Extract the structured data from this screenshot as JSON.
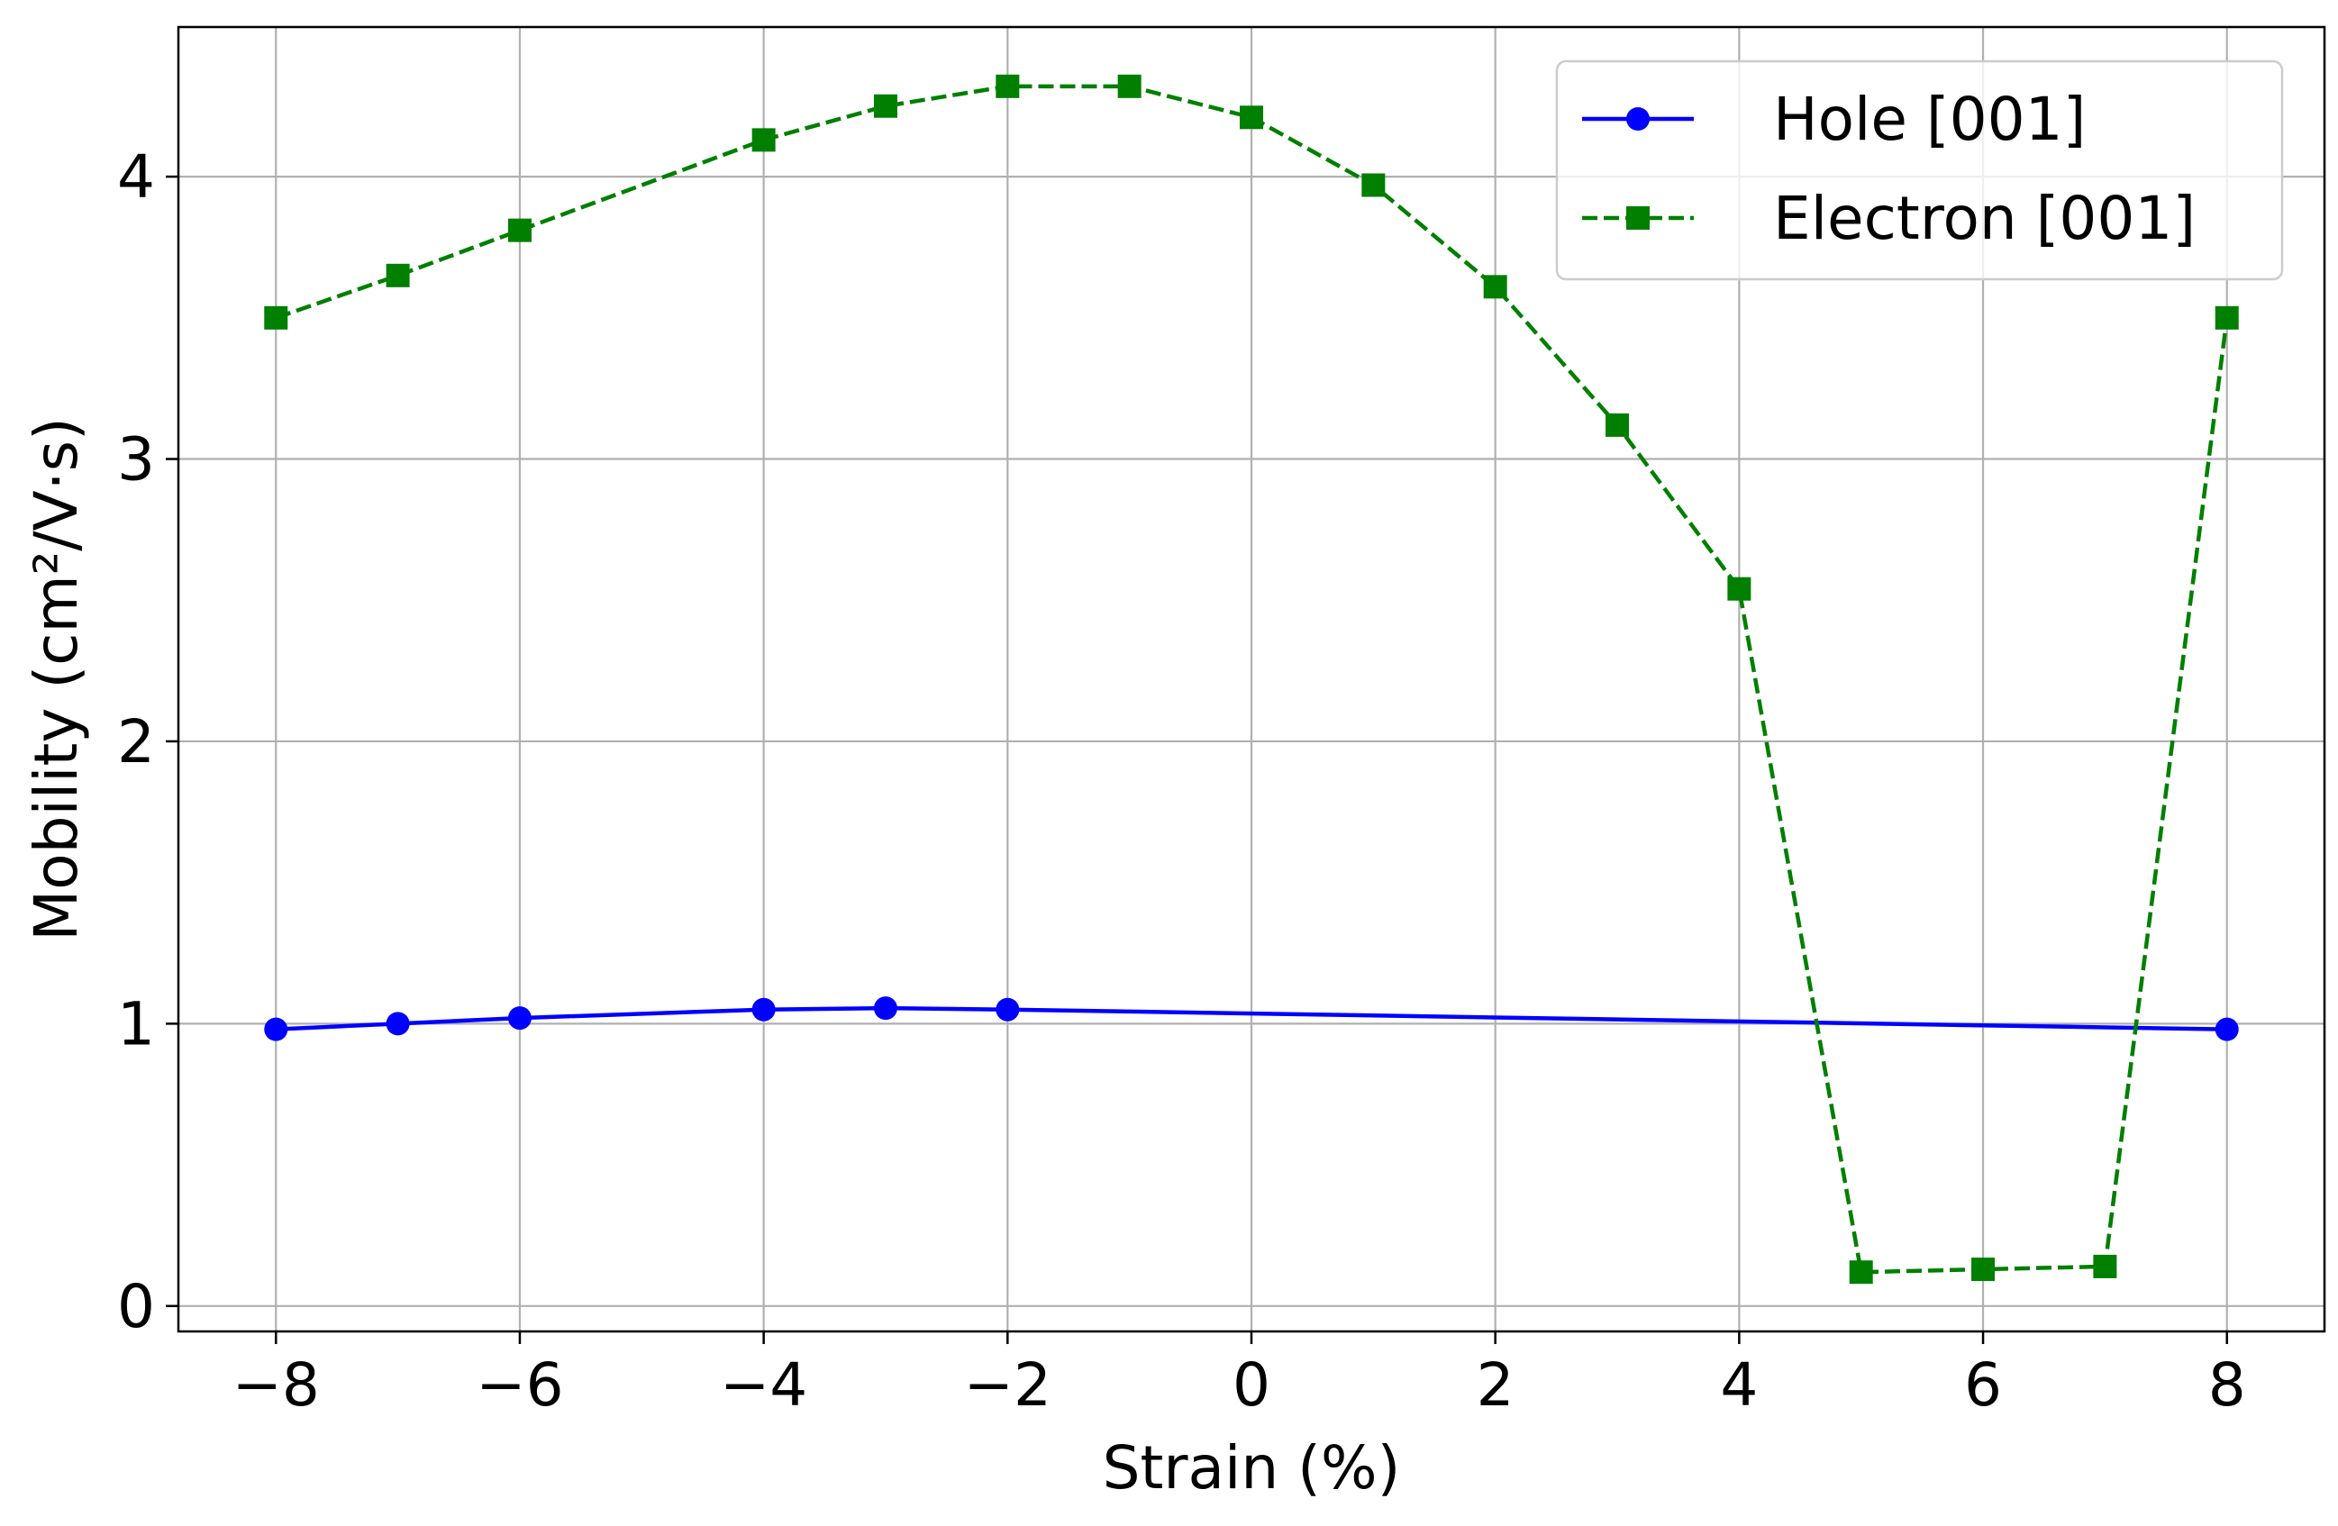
{
  "chart_data": {
    "type": "line",
    "xlabel": "Strain (%)",
    "ylabel": "Mobility (cm²/V·s)",
    "xlim": [
      -8.8,
      8.8
    ],
    "ylim": [
      -0.09,
      4.53
    ],
    "x_ticks": [
      -8,
      -6,
      -4,
      -2,
      0,
      2,
      4,
      6,
      8
    ],
    "x_tick_labels": [
      "−8",
      "−6",
      "−4",
      "−2",
      "0",
      "2",
      "4",
      "6",
      "8"
    ],
    "y_ticks": [
      0,
      1,
      2,
      3,
      4
    ],
    "y_tick_labels": [
      "0",
      "1",
      "2",
      "3",
      "4"
    ],
    "grid": true,
    "legend_position": "top-right",
    "series": [
      {
        "name": "Hole [001]",
        "color": "#0000ff",
        "line_style": "solid",
        "marker": "circle",
        "points": [
          {
            "x": -8,
            "y": 0.98
          },
          {
            "x": -7,
            "y": 1.0
          },
          {
            "x": -6,
            "y": 1.02
          },
          {
            "x": -4,
            "y": 1.05
          },
          {
            "x": -3,
            "y": 1.055
          },
          {
            "x": -2,
            "y": 1.05
          },
          {
            "x": 8,
            "y": 0.98
          }
        ]
      },
      {
        "name": "Electron [001]",
        "color": "#007f00",
        "line_style": "dashed",
        "marker": "square",
        "points": [
          {
            "x": -8,
            "y": 3.5
          },
          {
            "x": -7,
            "y": 3.65
          },
          {
            "x": -6,
            "y": 3.81
          },
          {
            "x": -4,
            "y": 4.13
          },
          {
            "x": -3,
            "y": 4.25
          },
          {
            "x": -2,
            "y": 4.32
          },
          {
            "x": -1,
            "y": 4.32
          },
          {
            "x": 0,
            "y": 4.21
          },
          {
            "x": 1,
            "y": 3.97
          },
          {
            "x": 2,
            "y": 3.61
          },
          {
            "x": 3,
            "y": 3.12
          },
          {
            "x": 4,
            "y": 2.54
          },
          {
            "x": 5,
            "y": 0.12
          },
          {
            "x": 6,
            "y": 0.13
          },
          {
            "x": 7,
            "y": 0.14
          },
          {
            "x": 8,
            "y": 3.5
          }
        ]
      }
    ]
  }
}
